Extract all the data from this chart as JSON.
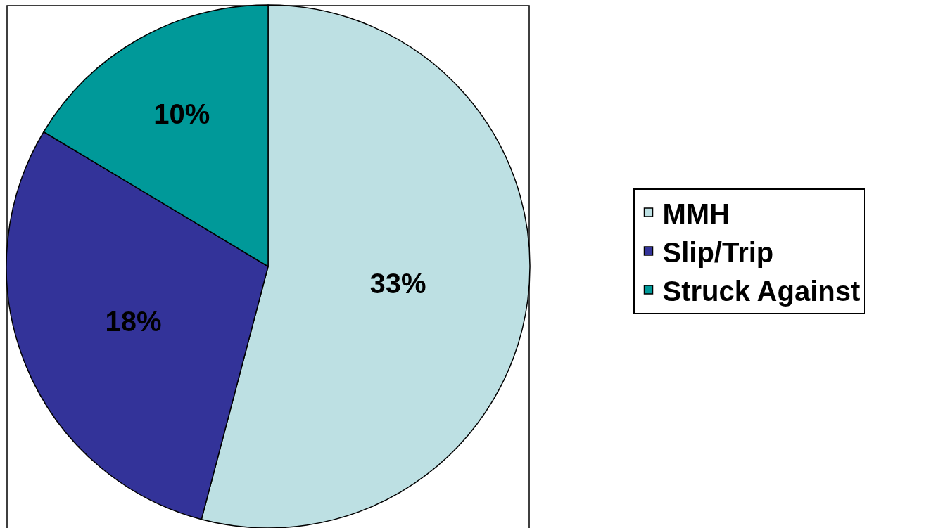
{
  "chart_data": {
    "type": "pie",
    "categories": [
      "MMH",
      "Slip/Trip",
      "Struck Against"
    ],
    "values": [
      33,
      18,
      10
    ],
    "value_labels": [
      "33%",
      "18%",
      "10%"
    ],
    "colors": [
      "#bde0e3",
      "#333399",
      "#009999"
    ],
    "legend": "right"
  }
}
